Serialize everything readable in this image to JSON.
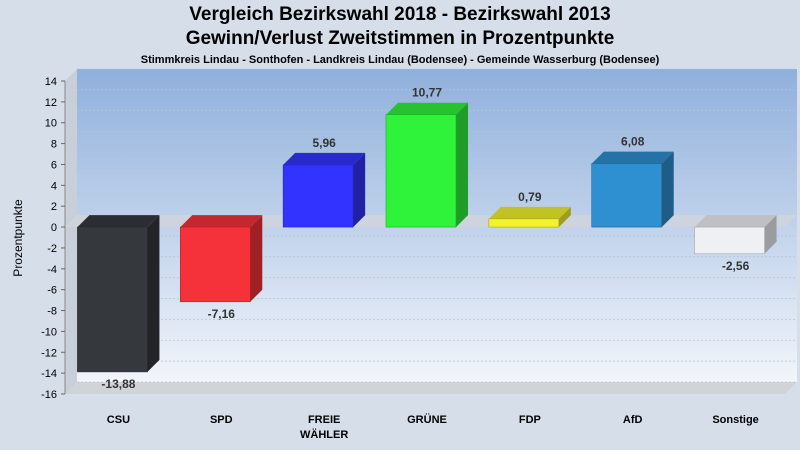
{
  "header": {
    "title_line1": "Vergleich Bezirkswahl 2018 - Bezirkswahl 2013",
    "title_line2": "Gewinn/Verlust Zweitstimmen in Prozentpunkte",
    "subtitle": "Stimmkreis Lindau - Sonthofen - Landkreis Lindau (Bodensee) - Gemeinde Wasserburg (Bodensee)"
  },
  "chart_data": {
    "type": "bar",
    "title": "Vergleich Bezirkswahl 2018 - Bezirkswahl 2013\nGewinn/Verlust Zweitstimmen in Prozentpunkte",
    "subtitle": "Stimmkreis Lindau - Sonthofen - Landkreis Lindau (Bodensee) - Gemeinde Wasserburg (Bodensee)",
    "ylabel": "Prozentpunkte",
    "xlabel": "",
    "ylim": [
      -16,
      14
    ],
    "yticks": [
      14,
      12,
      10,
      8,
      6,
      4,
      2,
      0,
      -2,
      -4,
      -6,
      -8,
      -10,
      -12,
      -14,
      -16
    ],
    "grid": true,
    "categories": [
      "CSU",
      "SPD",
      "FREIE\nWÄHLER",
      "GRÜNE",
      "FDP",
      "AfD",
      "Sonstige"
    ],
    "values": [
      -13.88,
      -7.16,
      5.96,
      10.77,
      0.79,
      6.08,
      -2.56
    ],
    "value_labels": [
      "-13,88",
      "-7,16",
      "5,96",
      "10,77",
      "0,79",
      "6,08",
      "-2,56"
    ],
    "colors": [
      "#35383d",
      "#f5323a",
      "#3333ff",
      "#2ff23b",
      "#f2f22e",
      "#2e8fd1",
      "#eef0f4"
    ]
  }
}
